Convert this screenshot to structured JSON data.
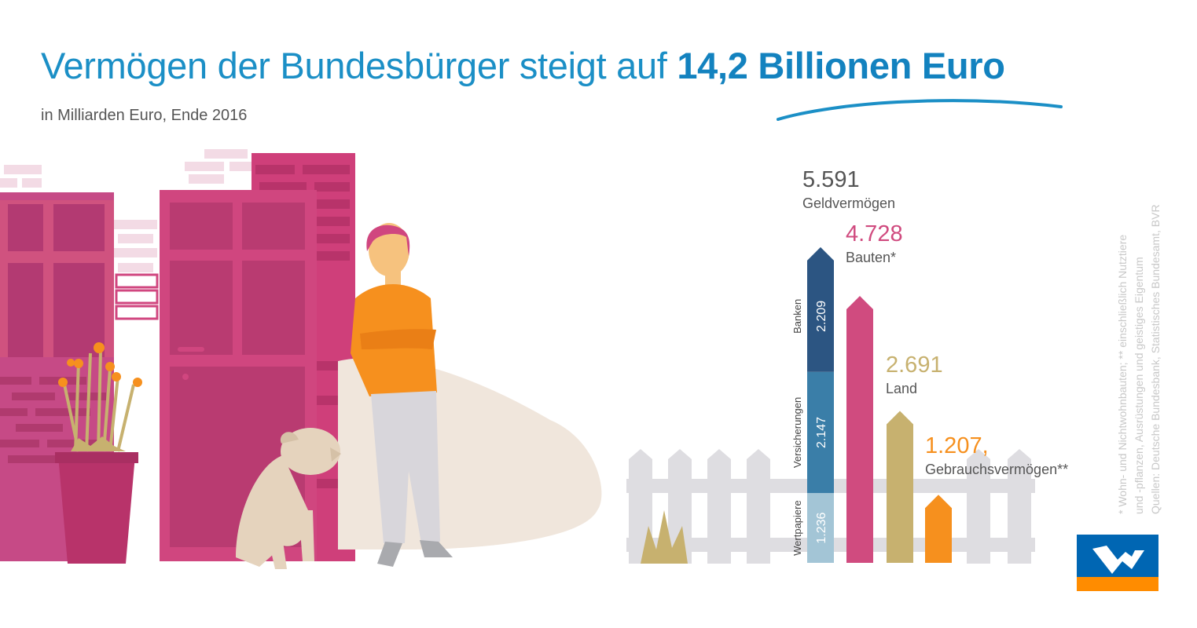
{
  "title": {
    "prefix": "Vermögen der Bundesbürger steigt auf ",
    "highlight": "14,2 Billionen Euro"
  },
  "subtitle": "in Milliarden Euro, Ende 2016",
  "colors": {
    "blue_title": "#1b8fc6",
    "banken": "#2c5582",
    "versicherungen": "#3a7ea8",
    "wertpapiere": "#a3c5d6",
    "bauten": "#d04b7f",
    "land": "#c7b16f",
    "gebrauch": "#f6901e",
    "value_gray": "#555555"
  },
  "chart_data": {
    "type": "bar",
    "unit": "Milliarden Euro",
    "categories": [
      "Geldvermögen",
      "Bauten*",
      "Land",
      "Gebrauchsvermögen**"
    ],
    "values": [
      5591,
      4728,
      2691,
      1207
    ],
    "value_labels": [
      "5.591",
      "4.728",
      "2.691",
      "1.207,"
    ],
    "stacked_geldvermoegen": [
      {
        "name": "Wertpapiere",
        "value": 1236,
        "label": "1.236"
      },
      {
        "name": "Versicherungen",
        "value": 2147,
        "label": "2.147"
      },
      {
        "name": "Banken",
        "value": 2209,
        "label": "2.209"
      }
    ]
  },
  "footnotes": [
    "* Wohn- und Nichtwohnbauten; ** einschließlich Nutztiere",
    "und -pflanzen, Ausrüstungen und geistiges Eigentum",
    "Quellen: Deutsche Bundesbank, Statistisches Bundesamt, BVR"
  ],
  "logo": {
    "icon": "volksbank-logo"
  }
}
